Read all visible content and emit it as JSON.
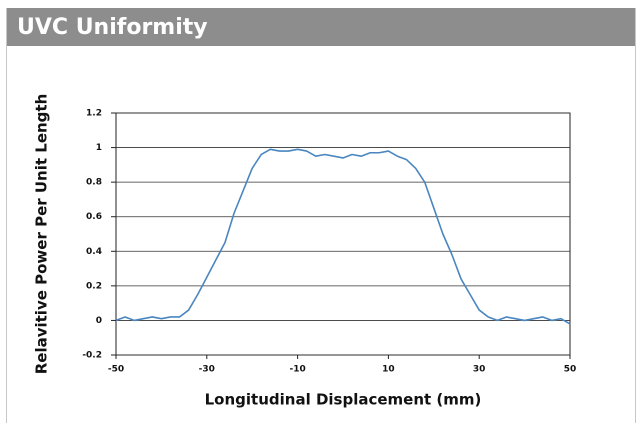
{
  "chart_data": {
    "type": "line",
    "title": "UVC Uniformity",
    "x_label": "Longitudinal Displacement (mm)",
    "y_label": "Relavitive Power Per Unit Length",
    "x": [
      -50,
      -48,
      -46,
      -44,
      -42,
      -40,
      -38,
      -36,
      -34,
      -32,
      -30,
      -28,
      -26,
      -24,
      -22,
      -20,
      -18,
      -16,
      -14,
      -12,
      -10,
      -8,
      -6,
      -4,
      -2,
      0,
      2,
      4,
      6,
      8,
      10,
      12,
      14,
      16,
      18,
      20,
      22,
      24,
      26,
      28,
      30,
      32,
      34,
      36,
      38,
      40,
      42,
      44,
      46,
      48,
      50
    ],
    "series": [
      {
        "name": "UVC",
        "color": "#4a86c0",
        "values": [
          0.0,
          0.02,
          0.0,
          0.01,
          0.02,
          0.01,
          0.02,
          0.02,
          0.06,
          0.15,
          0.25,
          0.35,
          0.45,
          0.62,
          0.75,
          0.88,
          0.96,
          0.99,
          0.98,
          0.98,
          0.99,
          0.98,
          0.95,
          0.96,
          0.95,
          0.94,
          0.96,
          0.95,
          0.97,
          0.97,
          0.98,
          0.95,
          0.93,
          0.88,
          0.8,
          0.65,
          0.5,
          0.38,
          0.24,
          0.15,
          0.06,
          0.02,
          0.0,
          0.02,
          0.01,
          0.0,
          0.01,
          0.02,
          0.0,
          0.01,
          -0.02
        ]
      }
    ],
    "xlim": [
      -50,
      50
    ],
    "xticks": [
      -50,
      -30,
      -10,
      10,
      30,
      50
    ],
    "ylim": [
      -0.2,
      1.2
    ],
    "yticks": [
      -0.2,
      0,
      0.2,
      0.4,
      0.6,
      0.8,
      1,
      1.2
    ],
    "grid": true
  }
}
